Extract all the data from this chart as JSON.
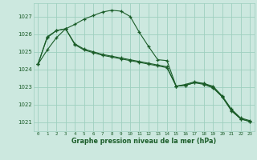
{
  "bg_color": "#cce8df",
  "grid_color": "#9ecfbf",
  "line_color": "#1a5c28",
  "ylim": [
    1020.5,
    1027.75
  ],
  "xlim": [
    -0.5,
    23.5
  ],
  "yticks": [
    1021,
    1022,
    1023,
    1024,
    1025,
    1026,
    1027
  ],
  "xticks": [
    0,
    1,
    2,
    3,
    4,
    5,
    6,
    7,
    8,
    9,
    10,
    11,
    12,
    13,
    14,
    15,
    16,
    17,
    18,
    19,
    20,
    21,
    22,
    23
  ],
  "xlabel": "Graphe pression niveau de la mer (hPa)",
  "series": [
    [
      1024.3,
      1025.1,
      1025.8,
      1026.3,
      1026.55,
      1026.85,
      1027.05,
      1027.25,
      1027.35,
      1027.3,
      1027.0,
      1026.1,
      1025.3,
      1024.55,
      1024.5,
      1023.05,
      1023.1,
      1023.25,
      1023.2,
      1023.05,
      1022.5,
      1021.75,
      1021.25,
      1021.1
    ],
    [
      1024.3,
      1025.8,
      1026.2,
      1026.3,
      1025.4,
      1025.1,
      1024.95,
      1024.8,
      1024.7,
      1024.6,
      1024.5,
      1024.4,
      1024.3,
      1024.2,
      1024.1,
      1023.05,
      1023.15,
      1023.3,
      1023.2,
      1023.0,
      1022.45,
      1021.7,
      1021.2,
      1021.05
    ],
    [
      1024.3,
      1025.85,
      1026.2,
      1026.3,
      1025.45,
      1025.15,
      1025.0,
      1024.85,
      1024.75,
      1024.65,
      1024.55,
      1024.45,
      1024.35,
      1024.25,
      1024.15,
      1023.05,
      1023.1,
      1023.25,
      1023.15,
      1022.95,
      1022.45,
      1021.65,
      1021.2,
      1021.05
    ]
  ]
}
